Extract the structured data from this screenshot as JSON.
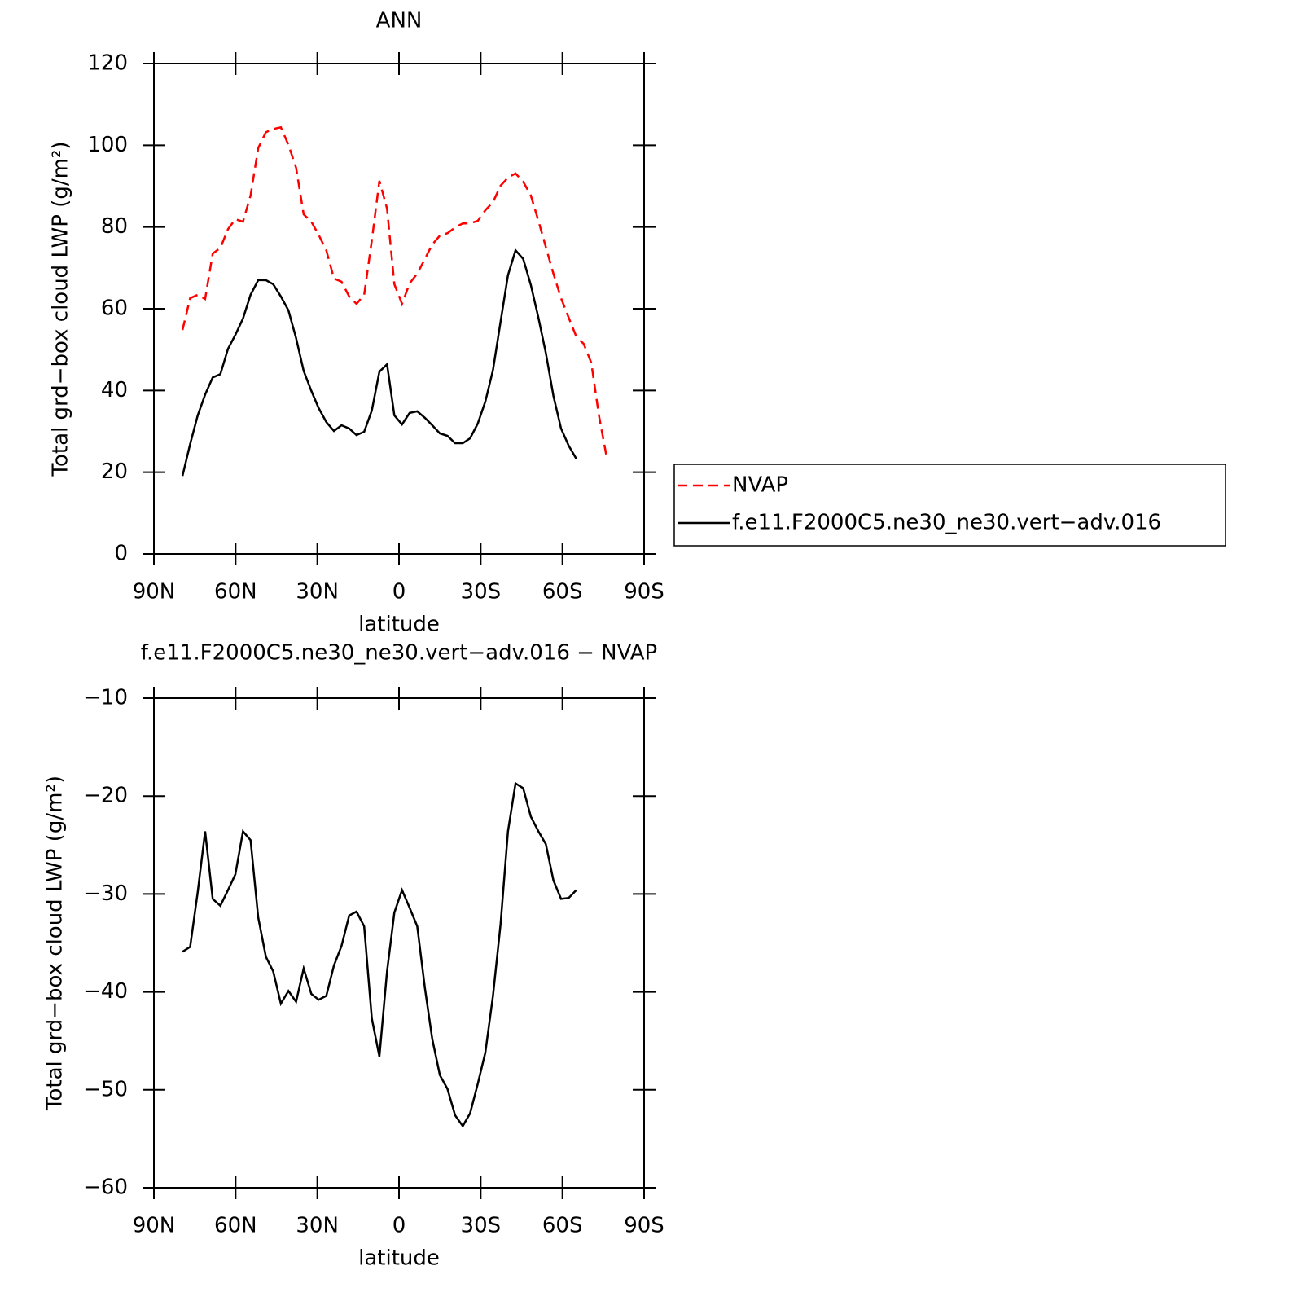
{
  "chart_data": [
    {
      "type": "line",
      "title": "ANN",
      "xlabel": "latitude",
      "ylabel": "Total grd−box cloud LWP (g/m²)",
      "x": [
        79.5,
        76.7,
        73.9,
        71.2,
        68.4,
        65.6,
        62.8,
        60.1,
        57.3,
        54.5,
        51.7,
        48.9,
        46.2,
        43.4,
        40.6,
        37.8,
        35.0,
        32.2,
        29.5,
        26.7,
        23.9,
        21.1,
        18.3,
        15.6,
        12.8,
        10.0,
        7.2,
        4.4,
        1.7,
        -1.1,
        -3.9,
        -6.7,
        -9.5,
        -12.2,
        -15.0,
        -17.8,
        -20.6,
        -23.4,
        -26.1,
        -28.9,
        -31.7,
        -34.5,
        -37.3,
        -40.0,
        -42.8,
        -45.6,
        -48.4,
        -51.2,
        -53.9,
        -56.7,
        -59.5,
        -62.3,
        -65.1,
        -67.8,
        -70.6,
        -73.4,
        -76.2
      ],
      "series": [
        {
          "name": "NVAP",
          "color": "#ff0000",
          "linestyle": "dashed",
          "values": [
            54.8,
            62.6,
            63.4,
            62.4,
            73.5,
            74.9,
            79.5,
            81.9,
            81.3,
            87.7,
            99.3,
            103.2,
            104.0,
            104.4,
            100.1,
            94.5,
            83.1,
            81.3,
            78.1,
            74.3,
            67.4,
            66.6,
            63.0,
            61.2,
            63.4,
            76.7,
            91.3,
            84.5,
            66.0,
            61.2,
            66.2,
            68.6,
            72.2,
            75.7,
            77.9,
            78.5,
            79.9,
            80.9,
            80.9,
            81.5,
            84.1,
            86.1,
            90.1,
            92.1,
            93.1,
            91.1,
            87.7,
            81.5,
            75.1,
            68.6,
            62.6,
            57.8,
            53.2,
            51.4,
            46.8,
            33.9,
            23.9
          ]
        },
        {
          "name": "f.e11.F2000C5.ne30_ne30.vert−adv.016",
          "color": "#000000",
          "linestyle": "solid",
          "values": [
            19.1,
            26.9,
            33.9,
            39.0,
            43.2,
            44.0,
            50.2,
            53.6,
            57.6,
            63.4,
            67.0,
            67.0,
            66.0,
            63.0,
            59.6,
            52.8,
            44.8,
            39.9,
            35.7,
            32.3,
            30.1,
            31.5,
            30.7,
            29.1,
            29.9,
            35.1,
            44.6,
            46.4,
            33.9,
            31.7,
            34.5,
            34.9,
            33.3,
            31.5,
            29.5,
            28.9,
            27.1,
            27.1,
            28.3,
            31.9,
            37.3,
            45.0,
            56.8,
            68.2,
            74.3,
            72.2,
            65.8,
            57.8,
            49.2,
            38.7,
            30.7,
            26.5,
            23.3,
            null,
            null,
            null,
            null
          ]
        }
      ],
      "xlim": [
        90,
        -90
      ],
      "xticks": [
        {
          "value": 90,
          "label": "90N"
        },
        {
          "value": 60,
          "label": "60N"
        },
        {
          "value": 30,
          "label": "30N"
        },
        0,
        {
          "value": -30,
          "label": "30S"
        },
        {
          "value": -60,
          "label": "60S"
        },
        {
          "value": -90,
          "label": "90S"
        }
      ],
      "ylim": [
        0,
        120
      ],
      "yticks": [
        0,
        20,
        40,
        60,
        80,
        100,
        120
      ],
      "legend": "right"
    },
    {
      "type": "line",
      "title": "f.e11.F2000C5.ne30_ne30.vert−adv.016 − NVAP",
      "xlabel": "latitude",
      "ylabel": "Total grd−box cloud LWP (g/m²)",
      "x": [
        79.5,
        76.7,
        73.9,
        71.2,
        68.4,
        65.6,
        62.8,
        60.1,
        57.3,
        54.5,
        51.7,
        48.9,
        46.2,
        43.4,
        40.6,
        37.8,
        35.0,
        32.2,
        29.5,
        26.7,
        23.9,
        21.1,
        18.3,
        15.6,
        12.8,
        10.0,
        7.2,
        4.4,
        1.7,
        -1.1,
        -3.9,
        -6.7,
        -9.5,
        -12.2,
        -15.0,
        -17.8,
        -20.6,
        -23.4,
        -26.1,
        -28.9,
        -31.7,
        -34.5,
        -37.3,
        -40.0,
        -42.8,
        -45.6,
        -48.4,
        -51.2,
        -53.9,
        -56.7,
        -59.5,
        -62.3,
        -65.1
      ],
      "series": [
        {
          "color": "#000000",
          "linestyle": "solid",
          "values": [
            -35.9,
            -35.4,
            -29.8,
            -23.6,
            -30.5,
            -31.2,
            -29.6,
            -28.0,
            -23.6,
            -24.5,
            -32.4,
            -36.4,
            -37.9,
            -41.2,
            -39.9,
            -41.0,
            -37.6,
            -40.2,
            -40.8,
            -40.4,
            -37.3,
            -35.3,
            -32.2,
            -31.8,
            -33.3,
            -42.7,
            -46.6,
            -37.9,
            -31.9,
            -29.6,
            -31.4,
            -33.3,
            -39.6,
            -44.8,
            -48.5,
            -49.9,
            -52.6,
            -53.7,
            -52.4,
            -49.4,
            -46.2,
            -40.4,
            -33.1,
            -23.6,
            -18.7,
            -19.2,
            -22.1,
            -23.6,
            -24.9,
            -28.6,
            -30.5,
            -30.4,
            -29.6
          ]
        }
      ],
      "xlim": [
        90,
        -90
      ],
      "xticks": [
        {
          "value": 90,
          "label": "90N"
        },
        {
          "value": 60,
          "label": "60N"
        },
        {
          "value": 30,
          "label": "30N"
        },
        0,
        {
          "value": -30,
          "label": "30S"
        },
        {
          "value": -60,
          "label": "60S"
        },
        {
          "value": -90,
          "label": "90S"
        }
      ],
      "ylim": [
        -60,
        -10
      ],
      "yticks": [
        {
          "value": -60,
          "label": "−60"
        },
        {
          "value": -50,
          "label": "−50"
        },
        {
          "value": -40,
          "label": "−40"
        },
        {
          "value": -30,
          "label": "−30"
        },
        {
          "value": -20,
          "label": "−20"
        },
        {
          "value": -10,
          "label": "−10"
        }
      ]
    }
  ]
}
